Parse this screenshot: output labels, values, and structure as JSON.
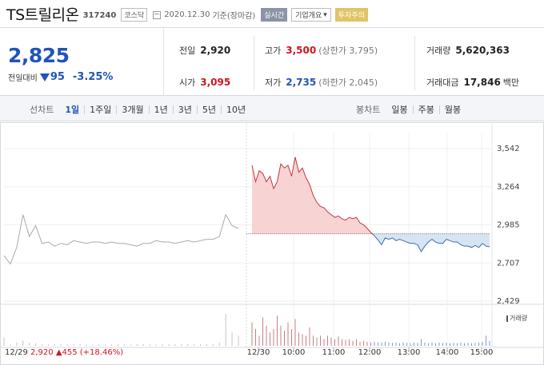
{
  "header": {
    "name": "TS트릴리온",
    "code": "317240",
    "market": "코스닥",
    "date": "2020.12.30",
    "basis": "기준(장마감)",
    "realtime_label": "실시간",
    "overview_label": "기업개요",
    "overview_arrow": "▾",
    "warning_label": "투자주의"
  },
  "price": {
    "current": "2,825",
    "change_label": "전일대비",
    "change_value": "95",
    "change_rate": "-3.25%",
    "prev_label": "전일",
    "prev_value": "2,920",
    "open_label": "시가",
    "open_value": "3,095",
    "high_label": "고가",
    "high_value": "3,500",
    "upper_limit": "(상한가 3,795)",
    "low_label": "저가",
    "low_value": "2,735",
    "lower_limit": "(하한가 2,045)",
    "volume_label": "거래량",
    "volume_value": "5,620,363",
    "amount_label": "거래대금",
    "amount_value": "17,846",
    "amount_unit": "백만"
  },
  "tabs": {
    "line_label": "선차트",
    "line_periods": [
      "1일",
      "1주일",
      "3개월",
      "1년",
      "3년",
      "5년",
      "10년"
    ],
    "line_selected": "1일",
    "candle_label": "봉차트",
    "candle_periods": [
      "일봉",
      "주봉",
      "월봉"
    ]
  },
  "colors": {
    "up": "#d0151d",
    "down": "#2154b9",
    "prev_line": "#999999",
    "up_fill": "#f8d3d4",
    "down_fill": "#d6e5f4"
  },
  "chart_data": {
    "type": "line",
    "y_ticks": [
      "3,542",
      "3,264",
      "2,985",
      "2,707",
      "2,429"
    ],
    "ylim": [
      2429,
      3542
    ],
    "x_ticks": [
      "12/30",
      "10:00",
      "11:00",
      "12:00",
      "13:00",
      "14:00",
      "15:00"
    ],
    "prev_close": 2920,
    "prev_day": {
      "date": "12/29",
      "close": "2,920",
      "change_arrow": "▲",
      "change": "455",
      "rate": "(+18.46%)"
    },
    "prev_day_series": [
      2760,
      2700,
      2820,
      3060,
      2900,
      2980,
      2850,
      2860,
      2830,
      2850,
      2840,
      2870,
      2860,
      2850,
      2860,
      2860,
      2850,
      2860,
      2850,
      2850,
      2840,
      2830,
      2850,
      2850,
      2870,
      2860,
      2860,
      2850,
      2860,
      2870,
      2860,
      2870,
      2880,
      2880,
      2900,
      3060,
      2980,
      2960
    ],
    "today_series": [
      3420,
      3300,
      3380,
      3360,
      3300,
      3340,
      3250,
      3300,
      3430,
      3400,
      3420,
      3340,
      3480,
      3370,
      3400,
      3330,
      3280,
      3200,
      3150,
      3120,
      3110,
      3080,
      3060,
      3040,
      3050,
      3030,
      3020,
      3040,
      3030,
      3040,
      3000,
      2985,
      2960,
      2930,
      2905,
      2875,
      2840,
      2890,
      2880,
      2890,
      2870,
      2880,
      2870,
      2860,
      2850,
      2850,
      2840,
      2790,
      2830,
      2860,
      2880,
      2860,
      2850,
      2850,
      2880,
      2870,
      2860,
      2860,
      2840,
      2830,
      2830,
      2820,
      2835,
      2820,
      2850,
      2830,
      2825
    ],
    "volume_label": "거래량",
    "prev_volume": [
      0.25,
      0.05,
      0.1,
      0.15,
      0.1,
      0.08,
      0.05,
      0.05,
      0.06,
      0.05,
      0.04,
      0.05,
      0.05,
      0.04,
      0.04,
      0.05,
      0.04,
      0.05,
      0.05,
      0.04,
      0.04,
      0.05,
      0.06,
      0.05,
      0.04,
      0.05,
      0.05,
      0.05,
      0.06,
      0.05,
      0.05,
      0.06,
      0.05,
      0.06,
      0.1,
      0.95,
      0.4,
      0.3
    ],
    "today_volume": [
      0.7,
      0.5,
      0.3,
      0.85,
      0.6,
      0.4,
      0.5,
      0.9,
      0.6,
      0.45,
      0.7,
      0.5,
      0.8,
      0.4,
      0.35,
      0.3,
      0.55,
      0.3,
      0.25,
      0.3,
      0.2,
      0.3,
      0.25,
      0.2,
      0.28,
      0.2,
      0.18,
      0.2,
      0.15,
      0.2,
      0.12,
      0.15,
      0.12,
      0.1,
      0.12,
      0.1,
      0.1,
      0.12,
      0.1,
      0.09,
      0.1,
      0.08,
      0.1,
      0.09,
      0.08,
      0.1,
      0.09,
      0.2,
      0.1,
      0.08,
      0.09,
      0.08,
      0.1,
      0.08,
      0.09,
      0.08,
      0.09,
      0.08,
      0.1,
      0.08,
      0.09,
      0.08,
      0.09,
      0.1,
      0.12,
      0.3,
      0.15
    ]
  }
}
